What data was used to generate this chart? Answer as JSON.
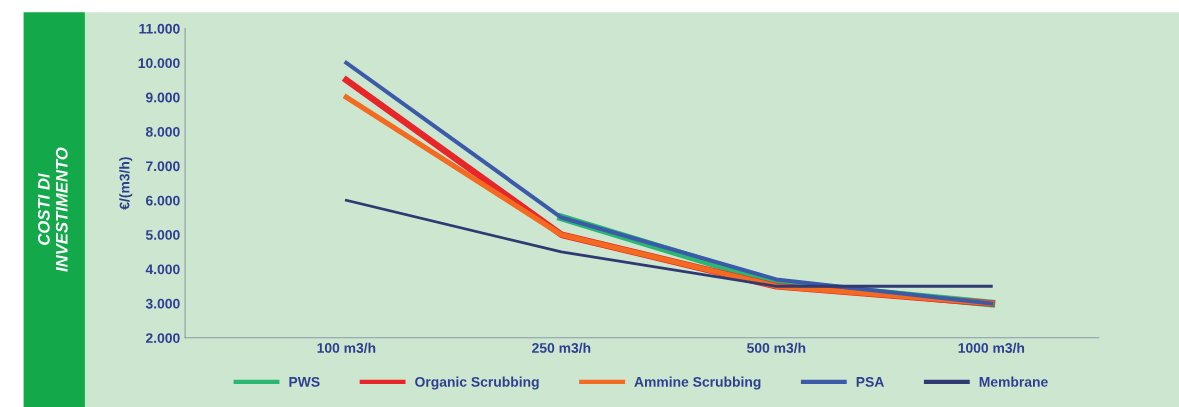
{
  "chart_data": {
    "type": "line",
    "title": "COSTI DI\nINVESTIMENTO",
    "ylabel": "€/(m3/h)",
    "categories": [
      "100 m3/h",
      "250 m3/h",
      "500 m3/h",
      "1000 m3/h"
    ],
    "series": [
      {
        "name": "PWS",
        "color": "#2bb673",
        "values": [
          null,
          5500,
          3600,
          3000
        ]
      },
      {
        "name": "Organic Scrubbing",
        "color": "#e8262a",
        "values": [
          9500,
          5000,
          3500,
          3000
        ]
      },
      {
        "name": "Ammine Scrubbing",
        "color": "#f26b21",
        "values": [
          9000,
          5000,
          3500,
          3000
        ]
      },
      {
        "name": "PSA",
        "color": "#3b5ba9",
        "values": [
          10000,
          5500,
          3700,
          3000
        ]
      },
      {
        "name": "Membrane",
        "color": "#2f3a73",
        "values": [
          6000,
          4500,
          3500,
          3500
        ]
      }
    ],
    "ylim": [
      2000,
      11000
    ],
    "yticks": [
      {
        "value": 2000,
        "label": "2.000"
      },
      {
        "value": 3000,
        "label": "3.000"
      },
      {
        "value": 4000,
        "label": "4.000"
      },
      {
        "value": 5000,
        "label": "5.000"
      },
      {
        "value": 6000,
        "label": "6.000"
      },
      {
        "value": 7000,
        "label": "7.000"
      },
      {
        "value": 8000,
        "label": "8.000"
      },
      {
        "value": 9000,
        "label": "9.000"
      },
      {
        "value": 10000,
        "label": "10.000"
      },
      {
        "value": 11000,
        "label": "11.000"
      }
    ],
    "legend": "bottom",
    "grid": false
  }
}
